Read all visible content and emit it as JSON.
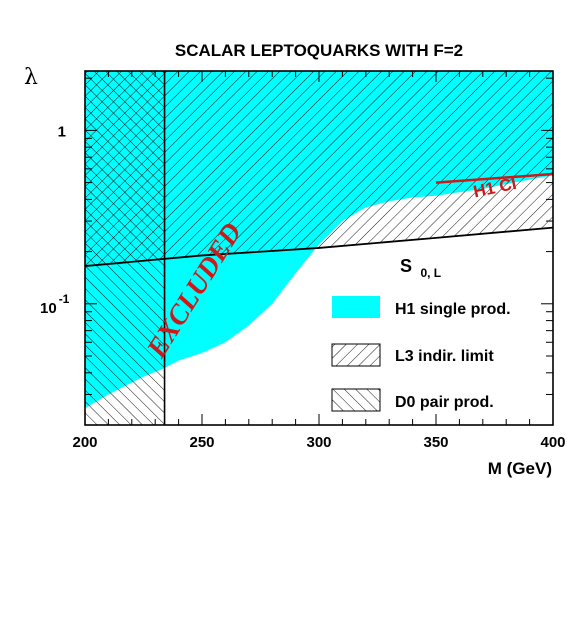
{
  "chart_data": {
    "type": "area",
    "title": "SCALAR LEPTOQUARKS WITH F=2",
    "xlabel": "M (GeV)",
    "ylabel": "λ",
    "xlim": [
      200,
      400
    ],
    "ylim": [
      0.02,
      2.2
    ],
    "yscale": "log",
    "x_ticks": [
      "200",
      "250",
      "300",
      "350",
      "400"
    ],
    "y_ticks": [
      {
        "value": 1,
        "label": "1"
      },
      {
        "value": 0.1,
        "label_base": "10",
        "label_exp": "-1"
      }
    ],
    "series": [
      {
        "name": "H1 single prod.",
        "style": "filled",
        "color": "#00ffff",
        "boundary_x": [
          200,
          210,
          225,
          233,
          240,
          250,
          260,
          270,
          280,
          290,
          300,
          310,
          320,
          330,
          340,
          350,
          360,
          370,
          380,
          390,
          400
        ],
        "boundary_y": [
          0.025,
          0.03,
          0.038,
          0.042,
          0.047,
          0.052,
          0.06,
          0.075,
          0.1,
          0.15,
          0.22,
          0.3,
          0.36,
          0.39,
          0.41,
          0.42,
          0.44,
          0.46,
          0.49,
          0.52,
          0.55
        ]
      },
      {
        "name": "L3 indir. limit",
        "style": "hatched-right",
        "line_x": [
          200,
          250,
          300,
          350,
          400
        ],
        "line_y": [
          0.165,
          0.19,
          0.21,
          0.24,
          0.275
        ]
      },
      {
        "name": "D0 pair prod.",
        "style": "hatched-left",
        "mass_limit": 234
      }
    ],
    "annotations": [
      {
        "text": "EXCLUDED",
        "color": "#d01818"
      },
      {
        "text": "H1 CI",
        "color": "#d01818",
        "line_x": [
          350,
          400
        ],
        "line_y": [
          0.5,
          0.56
        ]
      },
      {
        "text_main": "S",
        "text_sub": "0, L"
      }
    ],
    "legend_position": "right"
  }
}
